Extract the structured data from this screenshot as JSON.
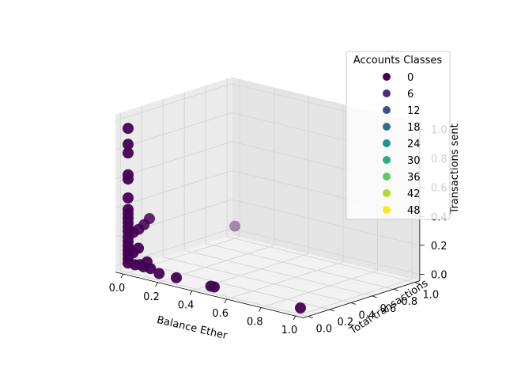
{
  "chart_data": {
    "type": "scatter",
    "projection": "3d",
    "xlabel": "Balance Ether",
    "ylabel": "Total transactions",
    "zlabel": "Transactions sent",
    "xlim": [
      0,
      1
    ],
    "ylim": [
      0,
      1
    ],
    "zlim": [
      0,
      1
    ],
    "x_ticks": [
      "0.0",
      "0.2",
      "0.4",
      "0.6",
      "0.8",
      "1.0"
    ],
    "y_ticks": [
      "0.0",
      "0.2",
      "0.4",
      "0.6",
      "0.8",
      "1.0"
    ],
    "z_ticks": [
      "0.0",
      "0.2",
      "0.4",
      "0.6",
      "0.8",
      "1.0"
    ],
    "grid": true,
    "colormap": "viridis",
    "legend": {
      "title": "Accounts Classes",
      "placement": "top-right",
      "entries": [
        {
          "label": "0",
          "color": "#440154"
        },
        {
          "label": "6",
          "color": "#472d7b"
        },
        {
          "label": "12",
          "color": "#3b528b"
        },
        {
          "label": "18",
          "color": "#2c728e"
        },
        {
          "label": "24",
          "color": "#21918c"
        },
        {
          "label": "30",
          "color": "#28ae80"
        },
        {
          "label": "36",
          "color": "#5ec962"
        },
        {
          "label": "42",
          "color": "#addc30"
        },
        {
          "label": "48",
          "color": "#fde725"
        }
      ]
    },
    "points": [
      {
        "x": 0.0,
        "y": 0.0,
        "z": 0.95,
        "class": 0
      },
      {
        "x": 0.0,
        "y": 0.0,
        "z": 0.84,
        "class": 0
      },
      {
        "x": 0.0,
        "y": 0.0,
        "z": 0.78,
        "class": 0
      },
      {
        "x": 0.0,
        "y": 0.0,
        "z": 0.63,
        "class": 0
      },
      {
        "x": 0.0,
        "y": 0.0,
        "z": 0.6,
        "class": 0
      },
      {
        "x": 0.0,
        "y": 0.0,
        "z": 0.47,
        "class": 0
      },
      {
        "x": 0.0,
        "y": 0.0,
        "z": 0.39,
        "class": 0
      },
      {
        "x": 0.0,
        "y": 0.0,
        "z": 0.36,
        "class": 0
      },
      {
        "x": 0.0,
        "y": 0.0,
        "z": 0.33,
        "class": 0
      },
      {
        "x": 0.0,
        "y": 0.0,
        "z": 0.3,
        "class": 0
      },
      {
        "x": 0.0,
        "y": 0.0,
        "z": 0.27,
        "class": 0
      },
      {
        "x": 0.0,
        "y": 0.0,
        "z": 0.24,
        "class": 0
      },
      {
        "x": 0.0,
        "y": 0.0,
        "z": 0.2,
        "class": 0
      },
      {
        "x": 0.0,
        "y": 0.0,
        "z": 0.17,
        "class": 0
      },
      {
        "x": 0.0,
        "y": 0.0,
        "z": 0.14,
        "class": 0
      },
      {
        "x": 0.0,
        "y": 0.0,
        "z": 0.11,
        "class": 0
      },
      {
        "x": 0.0,
        "y": 0.0,
        "z": 0.08,
        "class": 0
      },
      {
        "x": 0.0,
        "y": 0.0,
        "z": 0.05,
        "class": 0
      },
      {
        "x": 0.0,
        "y": 0.0,
        "z": 0.02,
        "class": 0
      },
      {
        "x": 0.03,
        "y": 0.0,
        "z": 0.1,
        "class": 0
      },
      {
        "x": 0.04,
        "y": 0.0,
        "z": 0.02,
        "class": 0
      },
      {
        "x": 0.06,
        "y": 0.0,
        "z": 0.14,
        "class": 0
      },
      {
        "x": 0.07,
        "y": 0.0,
        "z": 0.03,
        "class": 0
      },
      {
        "x": 0.09,
        "y": 0.0,
        "z": 0.02,
        "class": 0
      },
      {
        "x": 0.11,
        "y": 0.0,
        "z": 0.06,
        "class": 0
      },
      {
        "x": 0.13,
        "y": 0.0,
        "z": 0.02,
        "class": 0
      },
      {
        "x": 0.18,
        "y": 0.0,
        "z": 0.0,
        "class": 0
      },
      {
        "x": 0.28,
        "y": 0.0,
        "z": 0.0,
        "class": 0
      },
      {
        "x": 0.48,
        "y": 0.0,
        "z": 0.0,
        "class": 0
      },
      {
        "x": 0.5,
        "y": 0.0,
        "z": 0.0,
        "class": 0
      },
      {
        "x": 1.0,
        "y": 0.0,
        "z": 0.0,
        "class": 0
      },
      {
        "x": 0.0,
        "y": 0.05,
        "z": 0.22,
        "class": 0
      },
      {
        "x": 0.0,
        "y": 0.1,
        "z": 0.23,
        "class": 0
      },
      {
        "x": 0.0,
        "y": 0.15,
        "z": 0.25,
        "class": 0
      },
      {
        "x": 0.0,
        "y": 0.2,
        "z": 0.28,
        "class": 0
      },
      {
        "x": 0.0,
        "y": 1.0,
        "z": 0.04,
        "class": 0
      }
    ]
  }
}
